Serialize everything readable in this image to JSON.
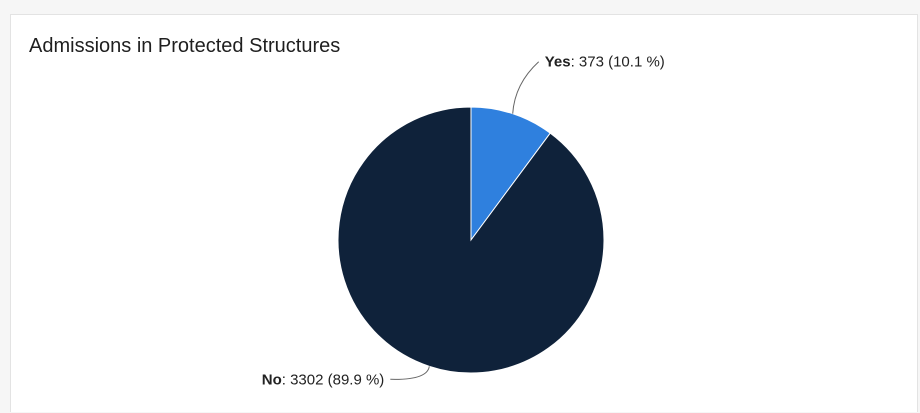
{
  "chart_data": {
    "type": "pie",
    "title": "Admissions in Protected Structures",
    "slices": [
      {
        "label": "Yes",
        "value": 373,
        "percent": "10.1 %",
        "color": "#2f80de"
      },
      {
        "label": "No",
        "value": 3302,
        "percent": "89.9 %",
        "color": "#0f223a"
      }
    ],
    "start_angle_deg": 0,
    "direction": "clockwise",
    "slice_border_color": "#ffffff"
  }
}
